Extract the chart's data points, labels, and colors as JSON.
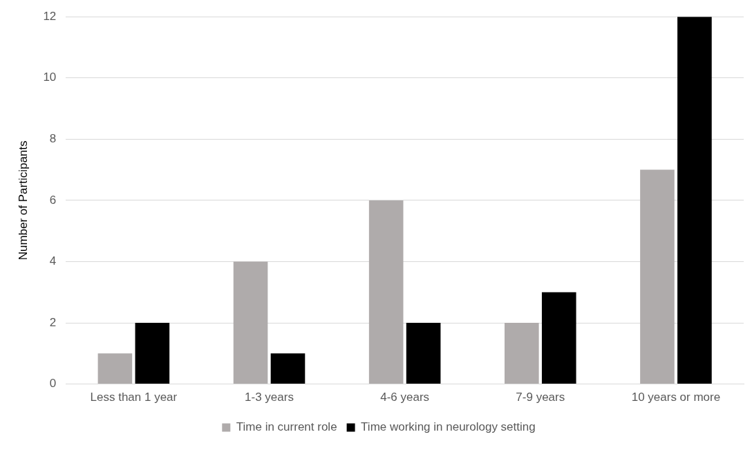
{
  "chart_data": {
    "type": "bar",
    "ylabel": "Number of Participants",
    "categories": [
      "Less than 1 year",
      "1-3 years",
      "4-6 years",
      "7-9 years",
      "10 years or more"
    ],
    "series": [
      {
        "name": "Time in current role",
        "color": "#afabab",
        "values": [
          1,
          4,
          6,
          2,
          7
        ]
      },
      {
        "name": "Time working in neurology setting",
        "color": "#000000",
        "values": [
          2,
          1,
          2,
          3,
          12
        ]
      }
    ],
    "ylim": [
      0,
      12
    ],
    "yticks": [
      0,
      2,
      4,
      6,
      8,
      10,
      12
    ],
    "grid": "y",
    "legend": "bottom"
  }
}
